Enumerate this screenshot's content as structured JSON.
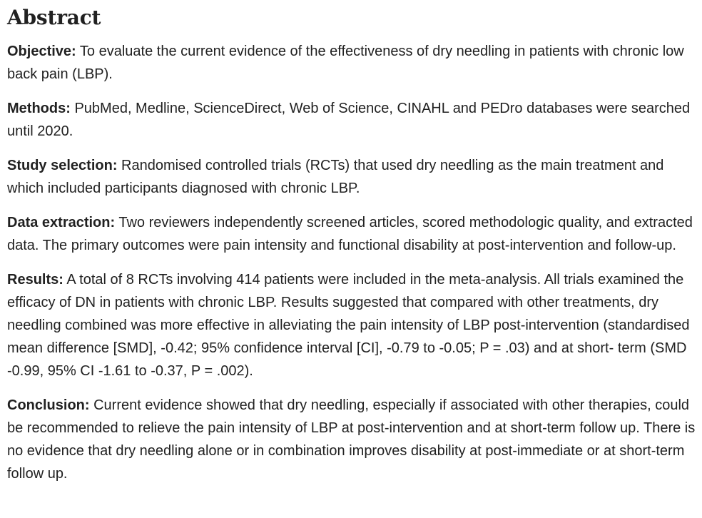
{
  "abstract": {
    "heading": "Abstract",
    "sections": [
      {
        "label": "Objective:",
        "text": "To evaluate the current evidence of the effectiveness of dry needling in patients with chronic low back pain (LBP)."
      },
      {
        "label": "Methods:",
        "text": "PubMed, Medline, ScienceDirect, Web of Science, CINAHL and PEDro databases were searched until 2020."
      },
      {
        "label": "Study selection:",
        "text": "Randomised controlled trials (RCTs) that used dry needling as the main treatment and which included participants diagnosed with chronic LBP."
      },
      {
        "label": "Data extraction:",
        "text": "Two reviewers independently screened articles, scored methodologic quality, and extracted data. The primary outcomes were pain intensity and functional disability at post-intervention and follow-up."
      },
      {
        "label": "Results:",
        "text": "A total of 8 RCTs involving 414 patients were included in the meta-analysis. All trials examined the efficacy of DN in patients with chronic LBP. Results suggested that compared with other treatments, dry needling combined was more effective in alleviating the pain intensity of LBP post-intervention (standardised mean difference [SMD], -0.42; 95% confidence interval [CI], -0.79 to -0.05; P = .03) and at short- term (SMD -0.99, 95% CI -1.61 to -0.37, P = .002)."
      },
      {
        "label": "Conclusion:",
        "text": "Current evidence showed that dry needling, especially if associated with other therapies, could be recommended to relieve the pain intensity of LBP at post-intervention and at short-term follow up. There is no evidence that dry needling alone or in combination improves disability at post-immediate or at short-term follow up."
      }
    ]
  }
}
